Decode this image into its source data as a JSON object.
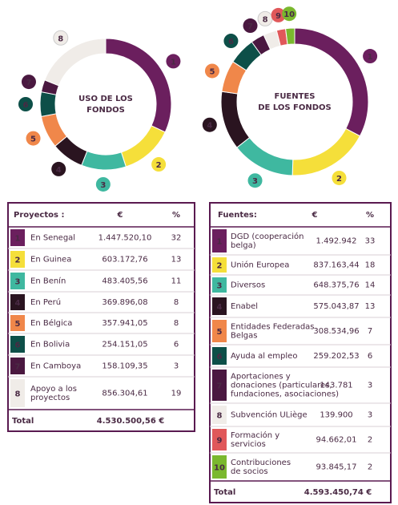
{
  "uso": {
    "title_lines": [
      "USO DE LOS",
      "FONDOS"
    ],
    "headers": [
      "Proyectos :",
      "€",
      "%"
    ],
    "rows": [
      {
        "num": "1",
        "label": [
          "En Senegal"
        ],
        "amount": "1.447.520,10",
        "pct": 32,
        "color": "#6b1f5e"
      },
      {
        "num": "2",
        "label": [
          "En Guinea"
        ],
        "amount": "603.172,76",
        "pct": 13,
        "color": "#f5df3a"
      },
      {
        "num": "3",
        "label": [
          "En Benín"
        ],
        "amount": "483.405,56",
        "pct": 11,
        "color": "#3fb8a0"
      },
      {
        "num": "4",
        "label": [
          "En Perú"
        ],
        "amount": "369.896,08",
        "pct": 8,
        "color": "#2a1420"
      },
      {
        "num": "5",
        "label": [
          "En Bélgica"
        ],
        "amount": "357.941,05",
        "pct": 8,
        "color": "#f0874a"
      },
      {
        "num": "6",
        "label": [
          "En Bolivia"
        ],
        "amount": "254.151,05",
        "pct": 6,
        "color": "#0d4f48"
      },
      {
        "num": "7",
        "label": [
          "En Camboya"
        ],
        "amount": "158.109,35",
        "pct": 3,
        "color": "#4a1840"
      },
      {
        "num": "8",
        "label": [
          "Apoyo a los",
          "proyectos"
        ],
        "amount": "856.304,61",
        "pct": 19,
        "color": "#f0ece8"
      }
    ],
    "total_label": "Total",
    "total": "4.530.500,56 €"
  },
  "fuentes": {
    "title_lines": [
      "FUENTES",
      "DE LOS FONDOS"
    ],
    "headers": [
      "Fuentes:",
      "€",
      "%"
    ],
    "rows": [
      {
        "num": "1",
        "label": [
          "DGD (cooperación",
          "belga)"
        ],
        "amount": "1.492.942",
        "pct": 33,
        "color": "#6b1f5e"
      },
      {
        "num": "2",
        "label": [
          "Unión Europea"
        ],
        "amount": "837.163,44",
        "pct": 18,
        "color": "#f5df3a"
      },
      {
        "num": "3",
        "label": [
          "Diversos"
        ],
        "amount": "648.375,76",
        "pct": 14,
        "color": "#3fb8a0"
      },
      {
        "num": "4",
        "label": [
          "Enabel"
        ],
        "amount": "575.043,87",
        "pct": 13,
        "color": "#2a1420"
      },
      {
        "num": "5",
        "label": [
          "Entidades Federadas",
          "Belgas"
        ],
        "amount": "308.534,96",
        "pct": 7,
        "color": "#f0874a"
      },
      {
        "num": "6",
        "label": [
          "Ayuda al empleo"
        ],
        "amount": "259.202,53",
        "pct": 6,
        "color": "#0d4f48"
      },
      {
        "num": "7",
        "label": [
          "Aportaciones y",
          "donaciones (particulares,",
          "fundaciones, asociaciones)"
        ],
        "amount": "143.781",
        "pct": 3,
        "color": "#4a1840"
      },
      {
        "num": "8",
        "label": [
          "Subvención ULiège"
        ],
        "amount": "139.900",
        "pct": 3,
        "color": "#f0ece8"
      },
      {
        "num": "9",
        "label": [
          "Formación y",
          "servicios"
        ],
        "amount": "94.662,01",
        "pct": 2,
        "color": "#e0585a"
      },
      {
        "num": "10",
        "label": [
          "Contribuciones",
          "de socios"
        ],
        "amount": "93.845,17",
        "pct": 2,
        "color": "#7ab82e"
      }
    ],
    "total_label": "Total",
    "total": "4.593.450,74 €"
  }
}
